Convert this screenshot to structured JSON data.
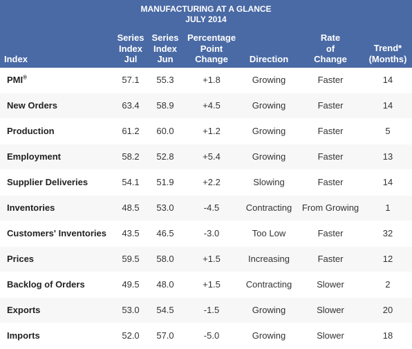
{
  "title": {
    "line1": "MANUFACTURING AT A GLANCE",
    "line2": "JULY 2014"
  },
  "headers": {
    "index": "Index",
    "jul": [
      "Series",
      "Index",
      "Jul"
    ],
    "jun": [
      "Series",
      "Index",
      "Jun"
    ],
    "change": [
      "Percentage",
      "Point",
      "Change"
    ],
    "direction": "Direction",
    "rate": [
      "Rate",
      "of",
      "Change"
    ],
    "trend": [
      "Trend*",
      "(Months)"
    ]
  },
  "rows": [
    {
      "index": "PMI",
      "sup": "®",
      "jul": "57.1",
      "jun": "55.3",
      "change": "+1.8",
      "direction": "Growing",
      "rate": "Faster",
      "trend": "14"
    },
    {
      "index": "New Orders",
      "sup": "",
      "jul": "63.4",
      "jun": "58.9",
      "change": "+4.5",
      "direction": "Growing",
      "rate": "Faster",
      "trend": "14"
    },
    {
      "index": "Production",
      "sup": "",
      "jul": "61.2",
      "jun": "60.0",
      "change": "+1.2",
      "direction": "Growing",
      "rate": "Faster",
      "trend": "5"
    },
    {
      "index": "Employment",
      "sup": "",
      "jul": "58.2",
      "jun": "52.8",
      "change": "+5.4",
      "direction": "Growing",
      "rate": "Faster",
      "trend": "13"
    },
    {
      "index": "Supplier Deliveries",
      "sup": "",
      "jul": "54.1",
      "jun": "51.9",
      "change": "+2.2",
      "direction": "Slowing",
      "rate": "Faster",
      "trend": "14"
    },
    {
      "index": "Inventories",
      "sup": "",
      "jul": "48.5",
      "jun": "53.0",
      "change": "-4.5",
      "direction": "Contracting",
      "rate": "From Growing",
      "trend": "1"
    },
    {
      "index": "Customers' Inventories",
      "sup": "",
      "jul": "43.5",
      "jun": "46.5",
      "change": "-3.0",
      "direction": "Too Low",
      "rate": "Faster",
      "trend": "32"
    },
    {
      "index": "Prices",
      "sup": "",
      "jul": "59.5",
      "jun": "58.0",
      "change": "+1.5",
      "direction": "Increasing",
      "rate": "Faster",
      "trend": "12"
    },
    {
      "index": "Backlog of Orders",
      "sup": "",
      "jul": "49.5",
      "jun": "48.0",
      "change": "+1.5",
      "direction": "Contracting",
      "rate": "Slower",
      "trend": "2"
    },
    {
      "index": "Exports",
      "sup": "",
      "jul": "53.0",
      "jun": "54.5",
      "change": "-1.5",
      "direction": "Growing",
      "rate": "Slower",
      "trend": "20"
    },
    {
      "index": "Imports",
      "sup": "",
      "jul": "52.0",
      "jun": "57.0",
      "change": "-5.0",
      "direction": "Growing",
      "rate": "Slower",
      "trend": "18"
    }
  ],
  "colors": {
    "header_bg": "#4a6aa5",
    "header_text": "#ffffff"
  }
}
